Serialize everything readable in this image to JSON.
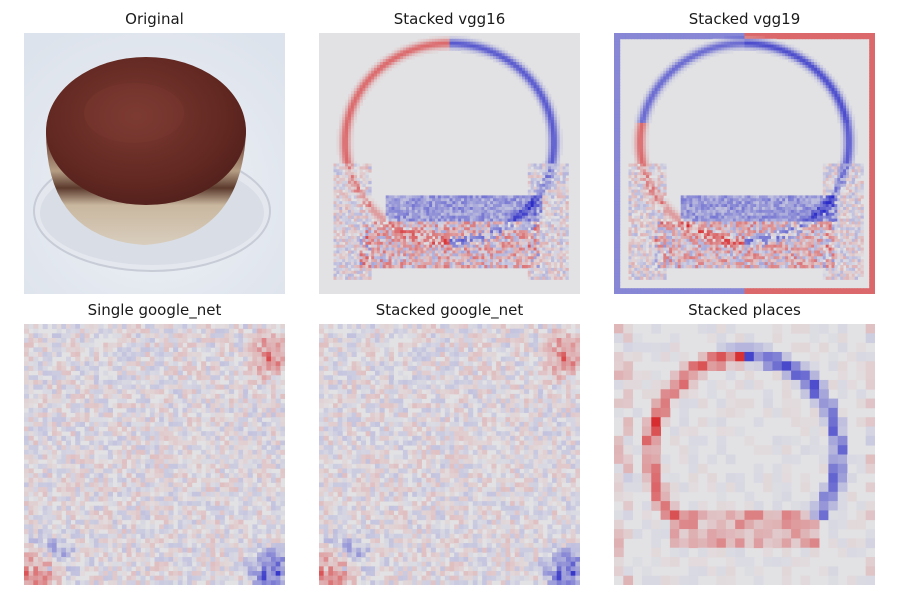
{
  "figure": {
    "panels": [
      {
        "id": "original",
        "title": "Original",
        "kind": "photo"
      },
      {
        "id": "stacked-vgg16",
        "title": "Stacked vgg16",
        "kind": "heatmap"
      },
      {
        "id": "stacked-vgg19",
        "title": "Stacked vgg19",
        "kind": "heatmap"
      },
      {
        "id": "single-google-net",
        "title": "Single google_net",
        "kind": "heatmap"
      },
      {
        "id": "stacked-google-net",
        "title": "Stacked google_net",
        "kind": "heatmap"
      },
      {
        "id": "stacked-places",
        "title": "Stacked places",
        "kind": "heatmap"
      }
    ],
    "colors": {
      "positive": "#d7191c",
      "negative": "#2c2cc8",
      "neutral": "#e2e2e4",
      "cake_top": "#6b2a24",
      "plate": "#dfe3ea"
    }
  }
}
